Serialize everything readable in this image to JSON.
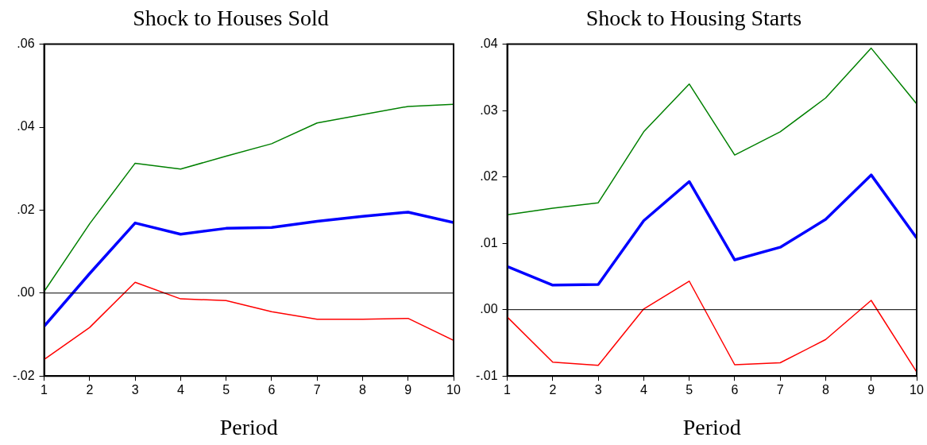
{
  "chart_data": [
    {
      "type": "line",
      "title": "Shock to Houses Sold",
      "xlabel": "Period",
      "x": [
        1,
        2,
        3,
        4,
        5,
        6,
        7,
        8,
        9,
        10
      ],
      "xlim": [
        1,
        10
      ],
      "xticks": [
        1,
        2,
        3,
        4,
        5,
        6,
        7,
        8,
        9,
        10
      ],
      "ylim": [
        -0.02,
        0.06
      ],
      "yticks": [
        {
          "value": -0.02,
          "label": "-.02"
        },
        {
          "value": 0,
          "label": ".00"
        },
        {
          "value": 0.02,
          "label": ".02"
        },
        {
          "value": 0.04,
          "label": ".04"
        },
        {
          "value": 0.06,
          "label": ".06"
        }
      ],
      "grid": false,
      "legend": false,
      "marker": "none",
      "line_style": "solid",
      "ref_lines": [
        {
          "axis": "y",
          "value": 0,
          "color": "#000000"
        }
      ],
      "series": [
        {
          "color": "#008000",
          "values": [
            0.0004,
            0.0167,
            0.0313,
            0.0299,
            0.033,
            0.036,
            0.041,
            0.043,
            0.045,
            0.0455
          ]
        },
        {
          "color": "#0000ff",
          "values": [
            -0.008,
            0.0047,
            0.0169,
            0.0142,
            0.0156,
            0.0158,
            0.0173,
            0.0185,
            0.0195,
            0.017
          ]
        },
        {
          "color": "#ff0000",
          "values": [
            -0.016,
            -0.0083,
            0.0026,
            -0.0014,
            -0.0018,
            -0.0045,
            -0.0063,
            -0.0063,
            -0.0061,
            -0.0114
          ]
        }
      ]
    },
    {
      "type": "line",
      "title": "Shock to Housing Starts",
      "xlabel": "Period",
      "x": [
        1,
        2,
        3,
        4,
        5,
        6,
        7,
        8,
        9,
        10
      ],
      "xlim": [
        1,
        10
      ],
      "xticks": [
        1,
        2,
        3,
        4,
        5,
        6,
        7,
        8,
        9,
        10
      ],
      "ylim": [
        -0.01,
        0.04
      ],
      "yticks": [
        {
          "value": -0.01,
          "label": "-.01"
        },
        {
          "value": 0,
          "label": ".00"
        },
        {
          "value": 0.01,
          "label": ".01"
        },
        {
          "value": 0.02,
          "label": ".02"
        },
        {
          "value": 0.03,
          "label": ".03"
        },
        {
          "value": 0.04,
          "label": ".04"
        }
      ],
      "grid": false,
      "legend": false,
      "marker": "none",
      "line_style": "solid",
      "ref_lines": [
        {
          "axis": "y",
          "value": 0,
          "color": "#000000"
        }
      ],
      "series": [
        {
          "color": "#008000",
          "values": [
            0.0143,
            0.0153,
            0.0161,
            0.0268,
            0.034,
            0.0233,
            0.0268,
            0.0319,
            0.0394,
            0.031
          ]
        },
        {
          "color": "#0000ff",
          "values": [
            0.0065,
            0.0037,
            0.0038,
            0.0134,
            0.0193,
            0.0075,
            0.0094,
            0.0136,
            0.0203,
            0.0108
          ]
        },
        {
          "color": "#ff0000",
          "values": [
            -0.0011,
            -0.0079,
            -0.0084,
            0.0001,
            0.0043,
            -0.0083,
            -0.008,
            -0.0045,
            0.0014,
            -0.0094
          ]
        }
      ]
    }
  ]
}
